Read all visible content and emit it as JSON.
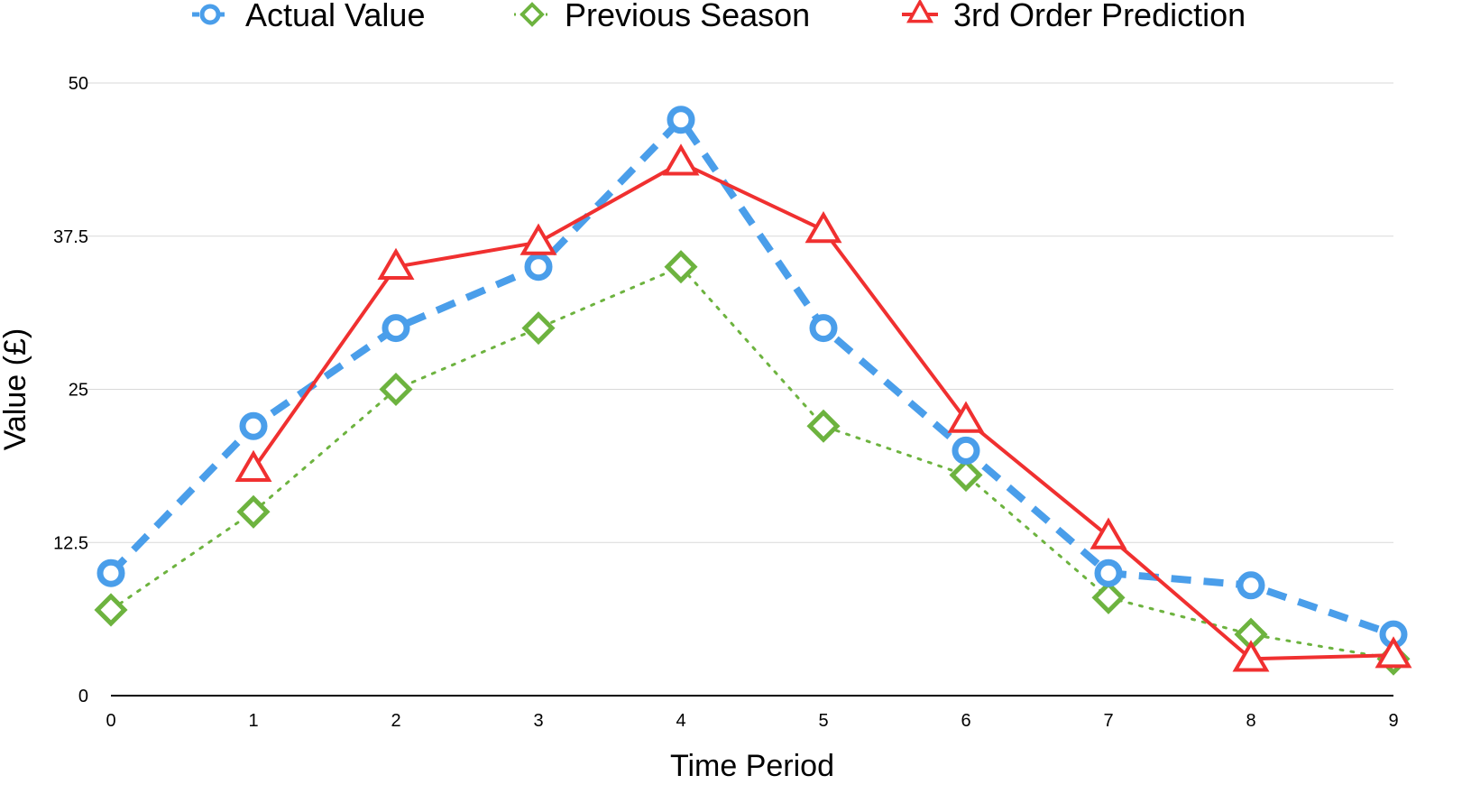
{
  "chart_data": {
    "type": "line",
    "xlabel": "Time Period",
    "ylabel": "Value (£)",
    "x": [
      0,
      1,
      2,
      3,
      4,
      5,
      6,
      7,
      8,
      9
    ],
    "x_tick_labels": [
      "0",
      "1",
      "2",
      "3",
      "4",
      "5",
      "6",
      "7",
      "8",
      "9"
    ],
    "y_ticks": [
      0,
      12.5,
      25,
      37.5,
      50
    ],
    "y_tick_labels": [
      "0",
      "12.5",
      "25",
      "37.5",
      "50"
    ],
    "ylim": [
      0,
      50
    ],
    "xlim": [
      0,
      9
    ],
    "grid": "horizontal",
    "legend_position": "top",
    "series": [
      {
        "name": "Actual Value",
        "marker": "circle",
        "line_style": "dashed",
        "color": "#4a9eea",
        "values": [
          10,
          22,
          30,
          35,
          47,
          30,
          20,
          10,
          9,
          5
        ]
      },
      {
        "name": "Previous Season",
        "marker": "diamond",
        "line_style": "dotted",
        "color": "#6db33f",
        "values": [
          7,
          15,
          25,
          30,
          35,
          22,
          18,
          8,
          5,
          3
        ]
      },
      {
        "name": "3rd Order Prediction",
        "marker": "triangle",
        "line_style": "solid",
        "color": "#f03030",
        "values": [
          null,
          18.5,
          35,
          37,
          43.5,
          38,
          22.5,
          13,
          3,
          3.3
        ]
      }
    ]
  }
}
